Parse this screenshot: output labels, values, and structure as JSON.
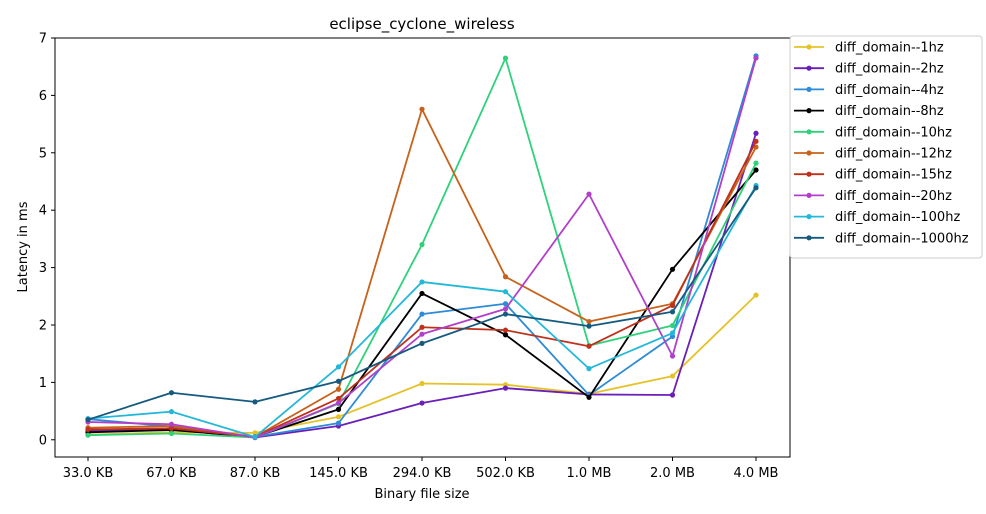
{
  "chart_data": {
    "type": "line",
    "title": "eclipse_cyclone_wireless",
    "xlabel": "Binary file size",
    "ylabel": "Latency in ms",
    "categories": [
      "33.0 KB",
      "67.0 KB",
      "87.0 KB",
      "145.0 KB",
      "294.0 KB",
      "502.0 KB",
      "1.0 MB",
      "2.0 MB",
      "4.0 MB"
    ],
    "ylim": [
      -0.3,
      7.0
    ],
    "yticks": [
      0,
      1,
      2,
      3,
      4,
      5,
      6,
      7
    ],
    "grid": false,
    "legend_position": "outside-right",
    "series": [
      {
        "name": "diff_domain--1hz",
        "color": "#e6c229",
        "values": [
          0.09,
          0.13,
          0.12,
          0.4,
          0.98,
          0.96,
          0.8,
          1.11,
          2.52
        ]
      },
      {
        "name": "diff_domain--2hz",
        "color": "#6a1fb8",
        "values": [
          0.16,
          0.18,
          0.04,
          0.24,
          0.64,
          0.9,
          0.79,
          0.78,
          5.34
        ]
      },
      {
        "name": "diff_domain--4hz",
        "color": "#2e8bd6",
        "values": [
          0.36,
          0.23,
          0.05,
          0.29,
          2.19,
          2.37,
          0.78,
          1.8,
          6.69
        ]
      },
      {
        "name": "diff_domain--8hz",
        "color": "#000000",
        "values": [
          0.13,
          0.17,
          0.05,
          0.53,
          2.55,
          1.83,
          0.74,
          2.97,
          4.7
        ]
      },
      {
        "name": "diff_domain--10hz",
        "color": "#2fd17a",
        "values": [
          0.08,
          0.11,
          0.04,
          0.63,
          3.4,
          6.65,
          1.64,
          1.99,
          4.82
        ]
      },
      {
        "name": "diff_domain--12hz",
        "color": "#c8621a",
        "values": [
          0.21,
          0.24,
          0.05,
          0.88,
          5.76,
          2.84,
          2.06,
          2.37,
          5.1
        ]
      },
      {
        "name": "diff_domain--15hz",
        "color": "#c0311b",
        "values": [
          0.18,
          0.2,
          0.05,
          0.72,
          1.96,
          1.91,
          1.63,
          2.34,
          5.2
        ]
      },
      {
        "name": "diff_domain--20hz",
        "color": "#b23fc9",
        "values": [
          0.31,
          0.27,
          0.04,
          0.64,
          1.84,
          2.28,
          4.28,
          1.46,
          6.65
        ]
      },
      {
        "name": "diff_domain--100hz",
        "color": "#24b8d8",
        "values": [
          0.37,
          0.49,
          0.05,
          1.27,
          2.75,
          2.58,
          1.24,
          1.86,
          4.43
        ]
      },
      {
        "name": "diff_domain--1000hz",
        "color": "#165a80",
        "values": [
          0.35,
          0.82,
          0.66,
          1.02,
          1.68,
          2.19,
          1.98,
          2.23,
          4.39
        ]
      }
    ]
  }
}
